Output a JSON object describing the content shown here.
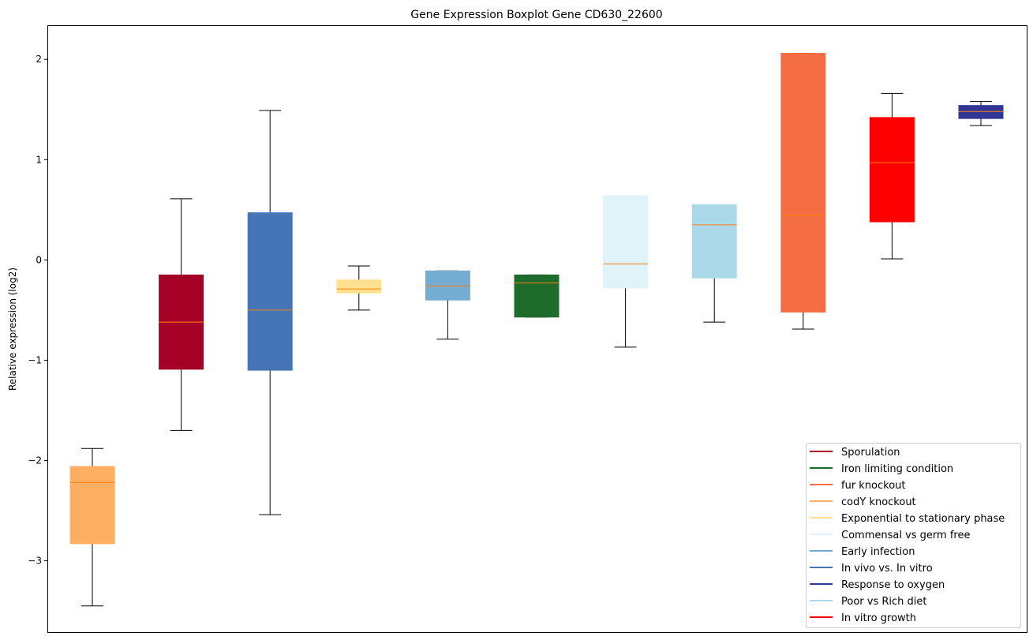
{
  "chart_data": {
    "type": "box",
    "title": "Gene Expression Boxplot Gene CD630_22600",
    "xlabel": "",
    "ylabel": "Relative expression (log2)",
    "ylim": [
      -3.72,
      2.34
    ],
    "yticks": [
      -3,
      -2,
      -1,
      0,
      1,
      2
    ],
    "ytick_labels": [
      "−3",
      "−2",
      "−1",
      "0",
      "1",
      "2"
    ],
    "grid": false,
    "legend_position": "bottom-right",
    "median_color": "#ff7f0e",
    "boxes": [
      {
        "name": "codY knockout",
        "color": "#fdae61",
        "whislo": -3.45,
        "q1": -2.83,
        "med": -2.22,
        "q3": -2.06,
        "whishi": -1.88
      },
      {
        "name": "Sporulation",
        "color": "#a50026",
        "whislo": -1.7,
        "q1": -1.09,
        "med": -0.62,
        "q3": -0.15,
        "whishi": 0.61
      },
      {
        "name": "In vivo vs. In vitro",
        "color": "#4575b4",
        "whislo": -2.54,
        "q1": -1.1,
        "med": -0.5,
        "q3": 0.47,
        "whishi": 1.49
      },
      {
        "name": "Exponential to stationary phase",
        "color": "#fee090",
        "whislo": -0.5,
        "q1": -0.33,
        "med": -0.29,
        "q3": -0.2,
        "whishi": -0.06
      },
      {
        "name": "Early infection",
        "color": "#74add1",
        "whislo": -0.79,
        "q1": -0.4,
        "med": -0.26,
        "q3": -0.11,
        "whishi": -0.11
      },
      {
        "name": "Iron limiting condition",
        "color": "#1f6b2b",
        "whislo": -0.57,
        "q1": -0.57,
        "med": -0.23,
        "q3": -0.15,
        "whishi": -0.15
      },
      {
        "name": "Commensal vs germ free",
        "color": "#e0f3f8",
        "whislo": -0.87,
        "q1": -0.28,
        "med": -0.04,
        "q3": 0.64,
        "whishi": 0.64
      },
      {
        "name": "Poor vs Rich diet",
        "color": "#abd9e9",
        "whislo": -0.62,
        "q1": -0.18,
        "med": 0.35,
        "q3": 0.55,
        "whishi": 0.55
      },
      {
        "name": "fur knockout",
        "color": "#f46d43",
        "whislo": -0.69,
        "q1": -0.52,
        "med": 0.44,
        "q3": 2.06,
        "whishi": 2.06
      },
      {
        "name": "In vitro growth",
        "color": "#ff0000",
        "whislo": 0.01,
        "q1": 0.38,
        "med": 0.97,
        "q3": 1.42,
        "whishi": 1.66
      },
      {
        "name": "Response to oxygen",
        "color": "#313695",
        "whislo": 1.34,
        "q1": 1.41,
        "med": 1.48,
        "q3": 1.54,
        "whishi": 1.58
      }
    ],
    "legend": [
      {
        "label": "Sporulation",
        "color": "#a50026"
      },
      {
        "label": "Iron limiting condition",
        "color": "#1f6b2b"
      },
      {
        "label": "fur knockout",
        "color": "#f46d43"
      },
      {
        "label": "codY knockout",
        "color": "#fdae61"
      },
      {
        "label": "Exponential to stationary phase",
        "color": "#fee090"
      },
      {
        "label": "Commensal vs germ free",
        "color": "#e0f3f8"
      },
      {
        "label": "Early infection",
        "color": "#74add1"
      },
      {
        "label": "In vivo vs. In vitro",
        "color": "#4575b4"
      },
      {
        "label": "Response to oxygen",
        "color": "#313695"
      },
      {
        "label": "Poor vs Rich diet",
        "color": "#abd9e9"
      },
      {
        "label": "In vitro growth",
        "color": "#ff0000"
      }
    ]
  }
}
